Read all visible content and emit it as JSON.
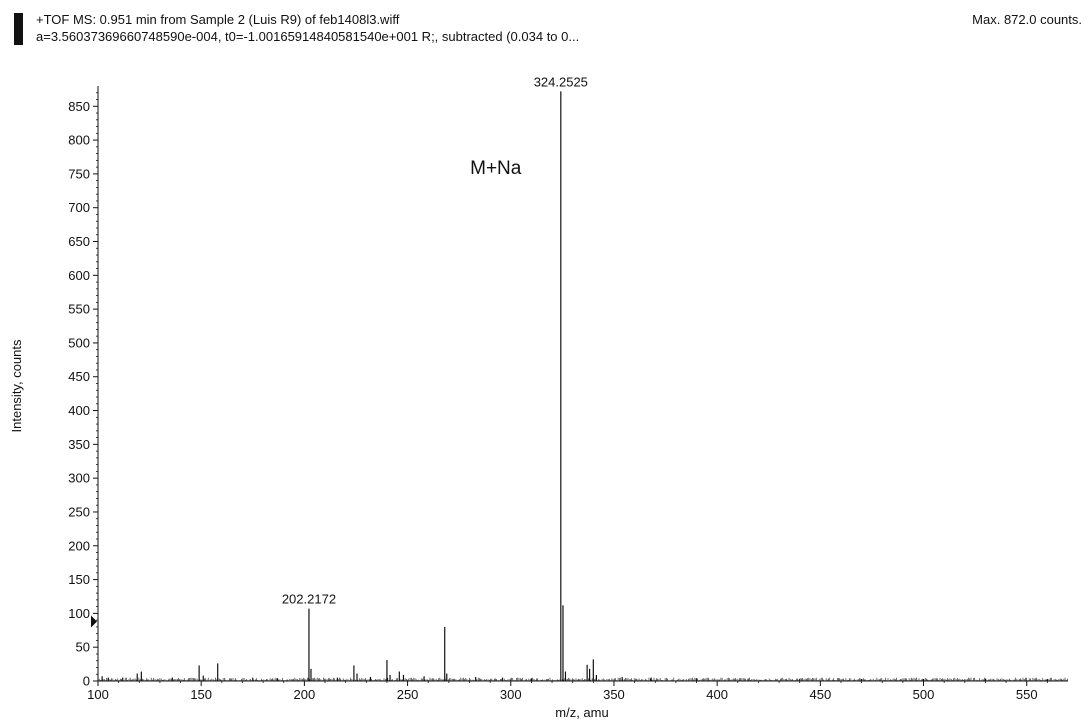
{
  "header": {
    "line1": "+TOF MS: 0.951 min from Sample 2 (Luis R9) of feb1408l3.wiff",
    "line2": "a=3.56037369660748590e-004, t0=-1.00165914840581540e+001 R;, subtracted (0.034 to 0...",
    "max_label": "Max. 872.0 counts."
  },
  "colors": {
    "axis": "#111111",
    "peak": "#111111",
    "background": "#ffffff"
  },
  "chart_data": {
    "type": "bar",
    "title": "",
    "xlabel": "m/z, amu",
    "ylabel": "Intensity, counts",
    "xlim": [
      100,
      570
    ],
    "ylim": [
      0,
      880
    ],
    "x_ticks": [
      100,
      150,
      200,
      250,
      300,
      350,
      400,
      450,
      500,
      550
    ],
    "y_ticks": [
      0,
      50,
      100,
      150,
      200,
      250,
      300,
      350,
      400,
      450,
      500,
      550,
      600,
      650,
      700,
      750,
      800,
      850
    ],
    "peaks": [
      {
        "x": 102,
        "y": 7
      },
      {
        "x": 105,
        "y": 5
      },
      {
        "x": 112,
        "y": 5
      },
      {
        "x": 119,
        "y": 11
      },
      {
        "x": 121,
        "y": 14
      },
      {
        "x": 136,
        "y": 5
      },
      {
        "x": 149,
        "y": 23
      },
      {
        "x": 151,
        "y": 8
      },
      {
        "x": 158,
        "y": 26
      },
      {
        "x": 175,
        "y": 5
      },
      {
        "x": 187,
        "y": 4
      },
      {
        "x": 202.2172,
        "y": 107
      },
      {
        "x": 203.2,
        "y": 18
      },
      {
        "x": 216,
        "y": 5
      },
      {
        "x": 224,
        "y": 23
      },
      {
        "x": 225.5,
        "y": 11
      },
      {
        "x": 232,
        "y": 6
      },
      {
        "x": 240,
        "y": 31
      },
      {
        "x": 241.5,
        "y": 9
      },
      {
        "x": 246,
        "y": 14
      },
      {
        "x": 248,
        "y": 9
      },
      {
        "x": 258,
        "y": 7
      },
      {
        "x": 268,
        "y": 80
      },
      {
        "x": 269,
        "y": 11
      },
      {
        "x": 283,
        "y": 6
      },
      {
        "x": 296,
        "y": 5
      },
      {
        "x": 310,
        "y": 4
      },
      {
        "x": 324.2525,
        "y": 872
      },
      {
        "x": 325.3,
        "y": 112
      },
      {
        "x": 326.5,
        "y": 14
      },
      {
        "x": 337,
        "y": 24
      },
      {
        "x": 338.2,
        "y": 18
      },
      {
        "x": 340,
        "y": 32
      },
      {
        "x": 341.5,
        "y": 9
      },
      {
        "x": 354,
        "y": 6
      },
      {
        "x": 368,
        "y": 5
      },
      {
        "x": 390,
        "y": 4
      },
      {
        "x": 415,
        "y": 3
      },
      {
        "x": 440,
        "y": 3
      },
      {
        "x": 470,
        "y": 3
      },
      {
        "x": 500,
        "y": 3
      },
      {
        "x": 530,
        "y": 3
      },
      {
        "x": 560,
        "y": 3
      }
    ],
    "peak_labels": [
      {
        "x": 324.2525,
        "y": 872,
        "text": "324.2525"
      },
      {
        "x": 202.2172,
        "y": 107,
        "text": "202.2172"
      }
    ],
    "annotations": [
      {
        "x": 290,
        "y": 760,
        "text": "M+Na"
      }
    ],
    "marker_y": 88
  }
}
